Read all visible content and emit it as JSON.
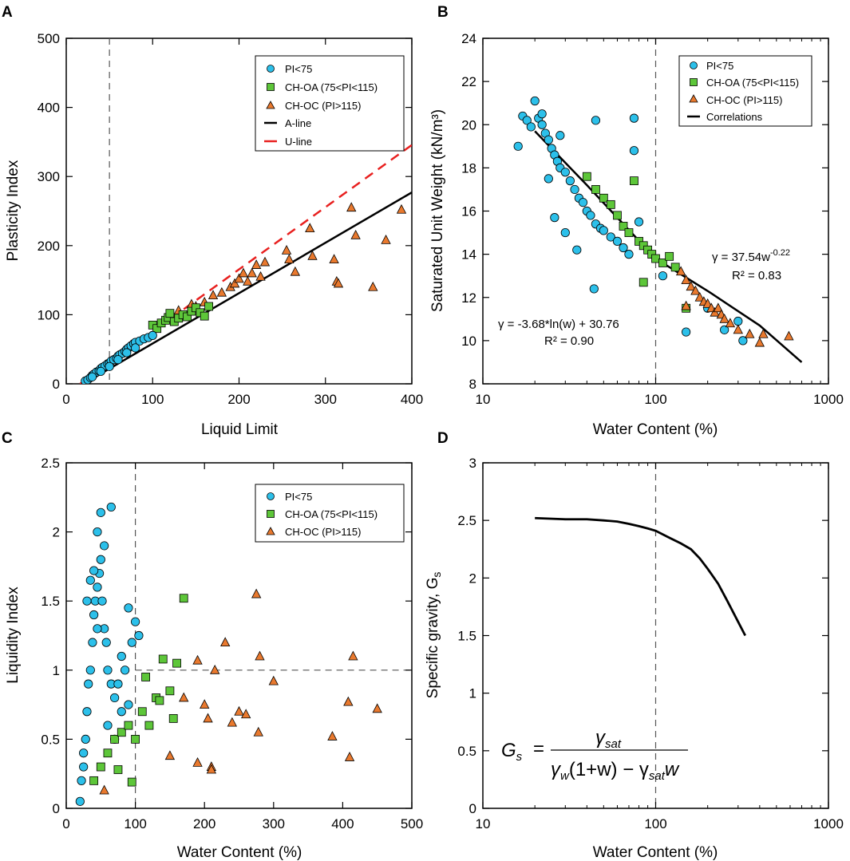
{
  "colors": {
    "pi75": "#2cc0ea",
    "choa": "#5dc639",
    "choc": "#e9792e",
    "aline": "#000000",
    "uline": "#e8201f"
  },
  "legend_labels": {
    "pi75": "PI<75",
    "choa": "CH-OA (75<PI<115)",
    "choc": "CH-OC (PI>115)",
    "aline": "A-line",
    "uline": "U-line",
    "corr": "Correlations"
  },
  "chart_data": [
    {
      "panel": "A",
      "type": "scatter",
      "xlabel": "Liquid Limit",
      "ylabel": "Plasticity Index",
      "xlim": [
        0,
        400
      ],
      "ylim": [
        0,
        500
      ],
      "xticks": [
        "0",
        "100",
        "200",
        "300",
        "400"
      ],
      "yticks": [
        "0",
        "100",
        "200",
        "300",
        "400",
        "500"
      ],
      "vline_x": 50,
      "lines": [
        {
          "name": "A-line",
          "style": "solid",
          "x": [
            20,
            400
          ],
          "y": [
            0,
            277
          ]
        },
        {
          "name": "U-line",
          "style": "dashed",
          "x": [
            16,
            400
          ],
          "y": [
            0,
            345.6
          ]
        }
      ],
      "series": [
        {
          "name": "CH-OC (PI>115)",
          "x": [
            130,
            145,
            150,
            160,
            170,
            180,
            190,
            195,
            200,
            205,
            210,
            215,
            220,
            225,
            230,
            255,
            258,
            265,
            282,
            285,
            310,
            313,
            315,
            330,
            335,
            355,
            370,
            388
          ],
          "y": [
            106,
            115,
            112,
            118,
            128,
            132,
            140,
            145,
            152,
            160,
            148,
            160,
            172,
            155,
            176,
            193,
            180,
            162,
            225,
            185,
            180,
            148,
            145,
            255,
            215,
            140,
            208,
            252
          ]
        },
        {
          "name": "CH-OA (75<PI<115)",
          "x": [
            100,
            105,
            110,
            115,
            118,
            120,
            125,
            130,
            135,
            140,
            145,
            150,
            155,
            160,
            165
          ],
          "y": [
            85,
            80,
            88,
            92,
            96,
            102,
            90,
            95,
            100,
            97,
            105,
            110,
            103,
            98,
            112
          ]
        },
        {
          "name": "PI<75",
          "x": [
            22,
            25,
            28,
            30,
            32,
            35,
            38,
            40,
            42,
            45,
            48,
            50,
            52,
            55,
            58,
            60,
            62,
            65,
            68,
            70,
            72,
            75,
            78,
            80,
            85,
            90,
            95,
            100,
            30,
            40,
            50,
            60,
            70,
            80
          ],
          "y": [
            4,
            6,
            9,
            12,
            14,
            17,
            19,
            22,
            24,
            26,
            29,
            30,
            33,
            35,
            37,
            40,
            42,
            44,
            47,
            50,
            52,
            55,
            58,
            60,
            62,
            65,
            67,
            70,
            10,
            18,
            25,
            35,
            45,
            52
          ]
        }
      ]
    },
    {
      "panel": "B",
      "type": "scatter",
      "xlabel": "Water Content (%)",
      "ylabel": "Saturated Unit Weight (kN/m³)",
      "xscale": "log",
      "xlim": [
        10,
        1000
      ],
      "ylim": [
        8,
        24
      ],
      "xticks": [
        "10",
        "100",
        "1000"
      ],
      "yticks": [
        "8",
        "10",
        "12",
        "14",
        "16",
        "18",
        "20",
        "22",
        "24"
      ],
      "vline_x": 100,
      "annotations": [
        "γ = 37.54w",
        "-0.22",
        "R² = 0.83",
        "γ = -3.68*ln(w) + 30.76",
        "R² = 0.90"
      ],
      "lines": [
        {
          "name": "Correlations",
          "style": "solid",
          "x": [
            20,
            40,
            100,
            200,
            400,
            700
          ],
          "y": [
            19.7,
            17.2,
            13.8,
            12.3,
            10.7,
            9.0
          ]
        }
      ],
      "series": [
        {
          "name": "PI<75",
          "x": [
            16,
            17,
            18,
            19,
            20,
            21,
            22,
            23,
            24,
            25,
            26,
            27,
            28,
            30,
            32,
            34,
            36,
            38,
            40,
            42,
            45,
            48,
            50,
            55,
            60,
            65,
            70,
            75,
            80,
            45,
            75,
            26,
            30,
            35,
            44,
            150,
            200,
            250,
            300,
            320,
            110,
            22,
            24,
            28
          ],
          "y": [
            19.0,
            20.4,
            20.2,
            19.9,
            21.1,
            20.3,
            20.0,
            19.6,
            19.3,
            18.9,
            18.6,
            18.3,
            18.0,
            17.8,
            17.4,
            17.0,
            16.6,
            16.4,
            16.0,
            15.8,
            15.4,
            15.2,
            15.1,
            14.8,
            14.6,
            14.3,
            14.0,
            18.8,
            15.5,
            20.2,
            20.3,
            15.7,
            15.0,
            14.2,
            12.4,
            10.4,
            11.5,
            10.5,
            10.9,
            10.0,
            13.0,
            20.5,
            17.5,
            19.5
          ]
        },
        {
          "name": "CH-OA (75<PI<115)",
          "x": [
            40,
            45,
            50,
            55,
            60,
            65,
            70,
            75,
            80,
            85,
            90,
            95,
            100,
            110,
            120,
            130,
            85,
            150
          ],
          "y": [
            17.6,
            17.0,
            16.6,
            16.3,
            15.8,
            15.3,
            15.0,
            17.4,
            14.6,
            14.4,
            14.2,
            14.0,
            13.8,
            13.6,
            13.9,
            13.4,
            12.7,
            11.5
          ]
        },
        {
          "name": "CH-OC (PI>115)",
          "x": [
            140,
            150,
            160,
            170,
            180,
            190,
            200,
            210,
            220,
            230,
            240,
            250,
            270,
            300,
            350,
            400,
            420,
            590,
            150
          ],
          "y": [
            13.2,
            12.8,
            12.5,
            12.3,
            12.0,
            11.8,
            11.7,
            11.5,
            11.3,
            11.5,
            11.2,
            11.0,
            10.8,
            10.5,
            10.3,
            9.9,
            10.3,
            10.2,
            11.6
          ]
        }
      ]
    },
    {
      "panel": "C",
      "type": "scatter",
      "xlabel": "Water Content (%)",
      "ylabel": "Liquidity Index",
      "xlim": [
        0,
        500
      ],
      "ylim": [
        0,
        2.5
      ],
      "xticks": [
        "0",
        "100",
        "200",
        "300",
        "400",
        "500"
      ],
      "yticks": [
        "0",
        "0.5",
        "1",
        "1.5",
        "2",
        "2.5"
      ],
      "vline_x": 100,
      "hline_y": 1.0,
      "hline_xrange": [
        100,
        500
      ],
      "series": [
        {
          "name": "PI<75",
          "x": [
            20,
            22,
            25,
            28,
            30,
            32,
            35,
            38,
            40,
            42,
            45,
            48,
            50,
            52,
            55,
            58,
            60,
            65,
            70,
            75,
            80,
            85,
            90,
            95,
            100,
            105,
            65,
            50,
            45,
            40,
            35,
            30,
            25,
            60,
            70,
            80,
            90,
            55,
            45
          ],
          "y": [
            0.05,
            0.2,
            0.3,
            0.5,
            0.7,
            0.9,
            1.0,
            1.2,
            1.4,
            1.5,
            1.6,
            1.7,
            1.8,
            1.5,
            1.3,
            1.2,
            1.0,
            0.9,
            0.8,
            0.9,
            1.1,
            1.0,
            1.45,
            1.2,
            1.35,
            1.25,
            2.18,
            2.14,
            2.0,
            1.72,
            1.65,
            1.5,
            0.4,
            0.6,
            0.5,
            0.7,
            0.75,
            1.9,
            1.3
          ]
        },
        {
          "name": "CH-OA (75<PI<115)",
          "x": [
            40,
            50,
            60,
            70,
            80,
            90,
            100,
            110,
            120,
            130,
            140,
            150,
            160,
            170,
            75,
            95,
            115,
            135,
            155
          ],
          "y": [
            0.2,
            0.3,
            0.4,
            0.5,
            0.55,
            0.6,
            0.5,
            0.7,
            0.6,
            0.8,
            1.08,
            0.85,
            1.05,
            1.52,
            0.28,
            0.19,
            0.95,
            0.78,
            0.65
          ]
        },
        {
          "name": "CH-OC (PI>115)",
          "x": [
            55,
            150,
            170,
            190,
            200,
            205,
            210,
            215,
            230,
            240,
            250,
            260,
            275,
            278,
            280,
            300,
            385,
            408,
            410,
            415,
            450,
            190,
            210
          ],
          "y": [
            0.13,
            0.38,
            0.8,
            1.07,
            0.75,
            0.65,
            0.3,
            1.0,
            1.2,
            0.62,
            0.7,
            0.68,
            1.55,
            0.55,
            1.1,
            0.92,
            0.52,
            0.77,
            0.37,
            1.1,
            0.72,
            0.33,
            0.28
          ]
        }
      ]
    },
    {
      "panel": "D",
      "type": "line",
      "xlabel": "Water Content (%)",
      "ylabel": "Specific gravity, G",
      "ylabel_sub": "s",
      "xscale": "log",
      "xlim": [
        10,
        1000
      ],
      "ylim": [
        0,
        3
      ],
      "xticks": [
        "10",
        "100",
        "1000"
      ],
      "yticks": [
        "0",
        "0.5",
        "1",
        "1.5",
        "2",
        "2.5",
        "3"
      ],
      "vline_x": 100,
      "formula": {
        "lhs": "G",
        "lhs_sub": "s",
        "eq": "=",
        "numerator": "γ",
        "numerator_sub": "sat",
        "den_a": "γ",
        "den_a_sub": "w",
        "den_b": "(1+w) − γ",
        "den_b_sub": "sat",
        "den_c": "w"
      },
      "series": [
        {
          "name": "Gs",
          "x": [
            20,
            30,
            40,
            50,
            60,
            70,
            80,
            90,
            100,
            120,
            140,
            160,
            180,
            200,
            230,
            260,
            300,
            330
          ],
          "y": [
            2.52,
            2.51,
            2.51,
            2.5,
            2.49,
            2.47,
            2.45,
            2.43,
            2.41,
            2.35,
            2.3,
            2.25,
            2.17,
            2.08,
            1.95,
            1.8,
            1.62,
            1.5
          ]
        }
      ]
    }
  ],
  "panel_labels": [
    "A",
    "B",
    "C",
    "D"
  ]
}
